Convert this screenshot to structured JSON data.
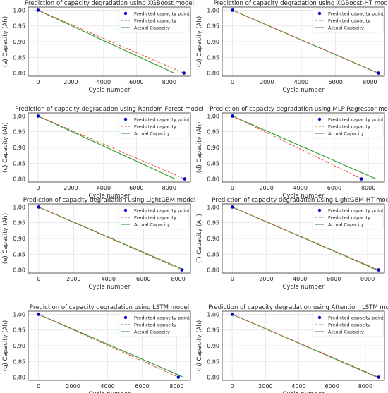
{
  "colors": {
    "predicted_point": "#0000cc",
    "predicted_line": "#e8463c",
    "actual_line": "#2a9a2a",
    "grid": "#e2e2e2",
    "axis": "#333333"
  },
  "legend_labels": [
    "Predicted capacity point",
    "Predicted capacity",
    "Actual Capacity"
  ],
  "chart_data": [
    {
      "type": "line",
      "title": "Prediction of capacity degradation using XGBoost model",
      "xlabel": "Cycle number",
      "ylabel": "(a) Capacity (Ah)",
      "xticks": [
        0,
        2000,
        4000,
        6000,
        8000
      ],
      "yticks": [
        0.8,
        0.85,
        0.9,
        0.95,
        1.0
      ],
      "ytick_labels": [
        "0.80",
        "0.85",
        "0.90",
        "0.95",
        "1.00"
      ],
      "xlim": [
        -600,
        9300
      ],
      "ylim": [
        0.79,
        1.01
      ],
      "grid": true,
      "legend_position": "top-right",
      "predicted_point": [
        [
          0,
          1.0
        ],
        [
          8900,
          0.8
        ]
      ],
      "predicted_line_style": "dashed",
      "series": [
        {
          "name": "Predicted capacity",
          "x": [
            0,
            8900
          ],
          "y": [
            1.0,
            0.8
          ]
        },
        {
          "name": "Actual Capacity",
          "x": [
            0,
            8300
          ],
          "y": [
            1.0,
            0.8
          ]
        }
      ]
    },
    {
      "type": "line",
      "title": "Prediction of capacity degradation using XGBoost-HT model",
      "xlabel": "Cycle number",
      "ylabel": "(b) Capacity (Ah)",
      "xticks": [
        0,
        2000,
        4000,
        6000,
        8000
      ],
      "yticks": [
        0.8,
        0.85,
        0.9,
        0.95,
        1.0
      ],
      "ytick_labels": [
        "0.80",
        "0.85",
        "0.90",
        "0.95",
        "1.00"
      ],
      "xlim": [
        -600,
        8850
      ],
      "ylim": [
        0.79,
        1.01
      ],
      "grid": true,
      "legend_position": "top-right",
      "predicted_point": [
        [
          0,
          1.0
        ],
        [
          8500,
          0.8
        ]
      ],
      "predicted_line_style": "dashed",
      "series": [
        {
          "name": "Predicted capacity",
          "x": [
            0,
            8500
          ],
          "y": [
            1.0,
            0.8
          ]
        },
        {
          "name": "Actual Capacity",
          "x": [
            0,
            8480
          ],
          "y": [
            1.0,
            0.8
          ]
        }
      ]
    },
    {
      "type": "line",
      "title": "Prediction of capacity degradation using Random Forest model",
      "xlabel": "Cycle number",
      "ylabel": "(c) Capacity (Ah)",
      "xticks": [
        0,
        2000,
        4000,
        6000,
        8000
      ],
      "yticks": [
        0.8,
        0.85,
        0.9,
        0.95,
        1.0
      ],
      "ytick_labels": [
        "0.80",
        "0.85",
        "0.90",
        "0.95",
        "1.00"
      ],
      "xlim": [
        -600,
        9300
      ],
      "ylim": [
        0.79,
        1.01
      ],
      "grid": true,
      "legend_position": "top-right",
      "predicted_point": [
        [
          0,
          1.0
        ],
        [
          8950,
          0.8
        ]
      ],
      "predicted_line_style": "dashed",
      "series": [
        {
          "name": "Predicted capacity",
          "x": [
            0,
            8950
          ],
          "y": [
            1.0,
            0.8
          ]
        },
        {
          "name": "Actual Capacity",
          "x": [
            0,
            8350
          ],
          "y": [
            1.0,
            0.8
          ]
        }
      ]
    },
    {
      "type": "line",
      "title": "Prediction of capacity degradation using MLP Regressor model",
      "xlabel": "Cycle number",
      "ylabel": "(d) Capacity (Ah)",
      "xticks": [
        0,
        2000,
        4000,
        6000,
        8000
      ],
      "yticks": [
        0.8,
        0.85,
        0.9,
        0.95,
        1.0
      ],
      "ytick_labels": [
        "0.80",
        "0.85",
        "0.90",
        "0.95",
        "1.00"
      ],
      "xlim": [
        -600,
        8950
      ],
      "ylim": [
        0.79,
        1.01
      ],
      "grid": true,
      "legend_position": "top-right",
      "predicted_point": [
        [
          0,
          1.0
        ],
        [
          7600,
          0.8
        ]
      ],
      "predicted_line_style": "dashed",
      "series": [
        {
          "name": "Predicted capacity",
          "x": [
            0,
            7600
          ],
          "y": [
            1.0,
            0.8
          ]
        },
        {
          "name": "Actual Capacity",
          "x": [
            0,
            8450
          ],
          "y": [
            1.0,
            0.8
          ]
        }
      ]
    },
    {
      "type": "line",
      "title": "Prediction of capacity degradation using LightGBM model",
      "xlabel": "Cycle number",
      "ylabel": "(e) Capacity (Ah)",
      "xticks": [
        0,
        2000,
        4000,
        6000,
        8000
      ],
      "yticks": [
        0.8,
        0.85,
        0.9,
        0.95,
        1.0
      ],
      "ytick_labels": [
        "0.80",
        "0.85",
        "0.90",
        "0.95",
        "1.00"
      ],
      "xlim": [
        -600,
        8700
      ],
      "ylim": [
        0.79,
        1.01
      ],
      "grid": true,
      "legend_position": "top-right",
      "predicted_point": [
        [
          0,
          1.0
        ],
        [
          8200,
          0.8
        ]
      ],
      "predicted_line_style": "dashed",
      "series": [
        {
          "name": "Predicted capacity",
          "x": [
            0,
            8200
          ],
          "y": [
            1.0,
            0.8
          ]
        },
        {
          "name": "Actual Capacity",
          "x": [
            0,
            8350
          ],
          "y": [
            1.0,
            0.8
          ]
        }
      ]
    },
    {
      "type": "line",
      "title": "Prediction of capacity degradation using LightGBM-HT model",
      "xlabel": "Cycle number",
      "ylabel": "(f) Capacity (Ah)",
      "xticks": [
        0,
        2000,
        4000,
        6000,
        8000
      ],
      "yticks": [
        0.8,
        0.85,
        0.9,
        0.95,
        1.0
      ],
      "ytick_labels": [
        "0.80",
        "0.85",
        "0.90",
        "0.95",
        "1.00"
      ],
      "xlim": [
        -600,
        9000
      ],
      "ylim": [
        0.79,
        1.01
      ],
      "grid": true,
      "legend_position": "top-right",
      "predicted_point": [
        [
          0,
          1.0
        ],
        [
          8650,
          0.8
        ]
      ],
      "predicted_line_style": "dashed",
      "series": [
        {
          "name": "Predicted capacity",
          "x": [
            0,
            8650
          ],
          "y": [
            1.0,
            0.8
          ]
        },
        {
          "name": "Actual Capacity",
          "x": [
            0,
            8550
          ],
          "y": [
            1.0,
            0.8
          ]
        }
      ]
    },
    {
      "type": "line",
      "title": "Prediction of capacity degradation using LSTM model",
      "xlabel": "Cycle number",
      "ylabel": "(g) Capacity (Ah)",
      "xticks": [
        0,
        2000,
        4000,
        6000,
        8000
      ],
      "yticks": [
        0.8,
        0.85,
        0.9,
        0.95,
        1.0
      ],
      "ytick_labels": [
        "0.80",
        "0.85",
        "0.90",
        "0.95",
        "1.00"
      ],
      "xlim": [
        -600,
        8800
      ],
      "ylim": [
        0.79,
        1.01
      ],
      "grid": true,
      "legend_position": "top-right",
      "predicted_point": [
        [
          0,
          1.0
        ],
        [
          8100,
          0.8
        ]
      ],
      "predicted_line_style": "dashed",
      "series": [
        {
          "name": "Predicted capacity",
          "x": [
            0,
            8100
          ],
          "y": [
            1.0,
            0.8
          ]
        },
        {
          "name": "Actual Capacity",
          "x": [
            0,
            8400
          ],
          "y": [
            1.0,
            0.8
          ]
        }
      ]
    },
    {
      "type": "line",
      "title": "Prediction of capacity degradation using Attention_LSTM model",
      "xlabel": "Cycle number",
      "ylabel": "(h) Capacity (Ah)",
      "xticks": [
        0,
        2000,
        4000,
        6000,
        8000
      ],
      "yticks": [
        0.8,
        0.85,
        0.9,
        0.95,
        1.0
      ],
      "ytick_labels": [
        "0.80",
        "0.85",
        "0.90",
        "0.95",
        "1.00"
      ],
      "xlim": [
        -600,
        9150
      ],
      "ylim": [
        0.79,
        1.01
      ],
      "grid": true,
      "legend_position": "top-right",
      "predicted_point": [
        [
          0,
          1.0
        ],
        [
          8800,
          0.8
        ]
      ],
      "predicted_line_style": "dashed",
      "series": [
        {
          "name": "Predicted capacity",
          "x": [
            0,
            8800
          ],
          "y": [
            1.0,
            0.8
          ]
        },
        {
          "name": "Actual Capacity",
          "x": [
            0,
            8700
          ],
          "y": [
            1.0,
            0.8
          ]
        }
      ]
    }
  ]
}
